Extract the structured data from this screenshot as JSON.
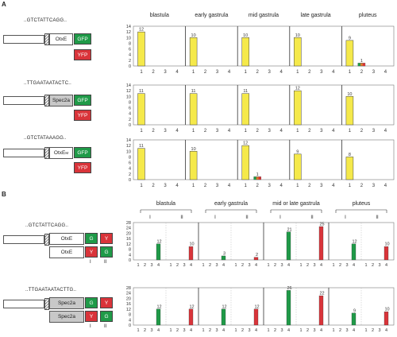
{
  "panelA": {
    "label": "A",
    "stages": [
      "blastula",
      "early gastrula",
      "mid gastrula",
      "late gastrula",
      "pluteus"
    ],
    "y_ticks": [
      "0",
      "2",
      "4",
      "6",
      "8",
      "10",
      "12",
      "14"
    ],
    "x_ticks": [
      "1",
      "2",
      "3",
      "4"
    ],
    "rows": [
      {
        "sequence": "..GTCTATTCAGG..",
        "gene": "OtxE",
        "reporters": [
          "GFP",
          "YFP"
        ],
        "values": [
          [
            12,
            0,
            0,
            0
          ],
          [
            10,
            0,
            0,
            0
          ],
          [
            10,
            0,
            0,
            0
          ],
          [
            10,
            0,
            0,
            0
          ],
          [
            9,
            1,
            0,
            0
          ]
        ]
      },
      {
        "sequence": "..TTGAATAATACTC..",
        "gene": "Spec2a",
        "reporters": [
          "GFP",
          "YFP"
        ],
        "values": [
          [
            11,
            0,
            0,
            0
          ],
          [
            11,
            0,
            0,
            0
          ],
          [
            11,
            0,
            0,
            0
          ],
          [
            12,
            0,
            0,
            0
          ],
          [
            10,
            0,
            0,
            0
          ]
        ]
      },
      {
        "sequence": "..GTCTATAAAGG..",
        "gene": "OtxE",
        "gene_sup": "M",
        "reporters": [
          "GFP",
          "YFP"
        ],
        "values": [
          [
            11,
            0,
            0,
            0
          ],
          [
            10,
            0,
            0,
            0
          ],
          [
            12,
            1,
            0,
            0
          ],
          [
            9,
            0,
            0,
            0
          ],
          [
            8,
            0,
            0,
            0
          ]
        ]
      }
    ]
  },
  "panelB": {
    "label": "B",
    "stages": [
      "blastula",
      "early gastrula",
      "mid or late gastrula",
      "pluteus"
    ],
    "roman": [
      "I",
      "II"
    ],
    "y_ticks": [
      "0",
      "4",
      "8",
      "12",
      "16",
      "20",
      "24",
      "28"
    ],
    "x_ticks": [
      "1",
      "2",
      "3",
      "4"
    ],
    "rows": [
      {
        "sequence": "..GTCTATTCAGG..",
        "genes": [
          "OtxE",
          "OtxE"
        ],
        "reporters_top": [
          "G",
          "Y"
        ],
        "reporters_bottom": [
          "Y",
          "G"
        ],
        "values": [
          [
            12,
            10
          ],
          [
            3,
            2
          ],
          [
            21,
            25
          ],
          [
            12,
            10
          ]
        ]
      },
      {
        "sequence": "..TTGAATAATACTTG..",
        "genes": [
          "Spec2a",
          "Spec2a"
        ],
        "reporters_top": [
          "G",
          "Y"
        ],
        "reporters_bottom": [
          "Y",
          "G"
        ],
        "values": [
          [
            12,
            12
          ],
          [
            12,
            12
          ],
          [
            26,
            22
          ],
          [
            9,
            10
          ]
        ]
      }
    ]
  },
  "colors": {
    "yellow": "#f5e94a",
    "green": "#1f9a48",
    "red": "#d9343a",
    "orange": "#e07a2a"
  }
}
